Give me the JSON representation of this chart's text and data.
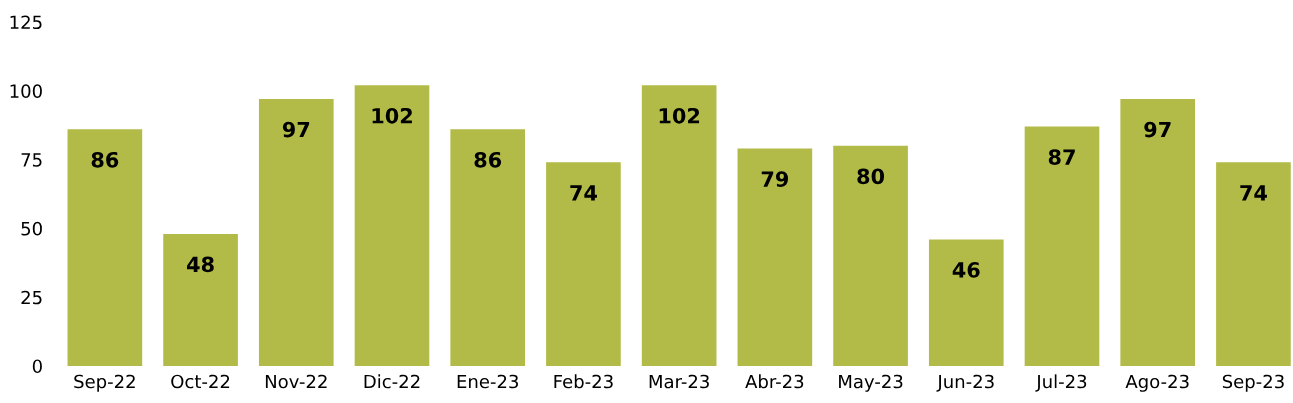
{
  "chart_data": {
    "type": "bar",
    "categories": [
      "Sep-22",
      "Oct-22",
      "Nov-22",
      "Dic-22",
      "Ene-23",
      "Feb-23",
      "Mar-23",
      "Abr-23",
      "May-23",
      "Jun-23",
      "Jul-23",
      "Ago-23",
      "Sep-23"
    ],
    "values": [
      86,
      48,
      97,
      102,
      86,
      74,
      102,
      79,
      80,
      46,
      87,
      97,
      74
    ],
    "color": "#b3bb48",
    "ylim": [
      0,
      125
    ],
    "yticks": [
      0,
      25,
      50,
      75,
      100,
      125
    ],
    "grid": false,
    "legend": false,
    "data_labels": true
  }
}
